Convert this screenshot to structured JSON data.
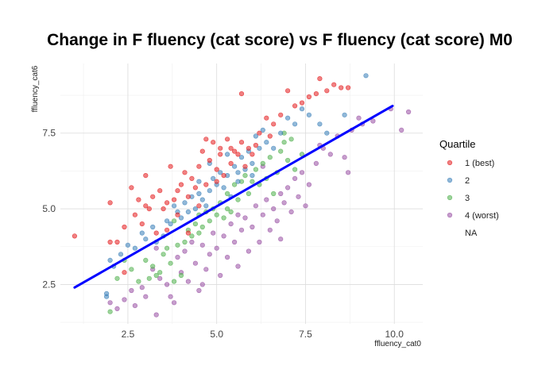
{
  "chart_data": {
    "type": "scatter",
    "title": "Change in F fluency (cat score) vs F fluency (cat score) M0",
    "xlabel": "ffluency_cat0",
    "ylabel": "ffluency_cat6",
    "xlim": [
      0.6,
      10.8
    ],
    "ylim": [
      1.2,
      9.8
    ],
    "x_ticks": [
      2.5,
      5.0,
      7.5,
      10.0
    ],
    "y_ticks": [
      2.5,
      5.0,
      7.5
    ],
    "x_tick_labels": [
      "2.5",
      "5.0",
      "7.5",
      "10.0"
    ],
    "y_tick_labels": [
      "2.5",
      "5.0",
      "7.5"
    ],
    "grid": true,
    "legend": {
      "title": "Quartile",
      "placement": "right",
      "entries": [
        "1 (best)",
        "2",
        "3",
        "4 (worst)",
        "NA"
      ]
    },
    "colors": {
      "1 (best)": "#e41a1c",
      "2": "#377eb8",
      "3": "#4daf4a",
      "4 (worst)": "#984ea3",
      "NA": "transparent",
      "fit": "#0000ff"
    },
    "fit_line": {
      "x": [
        1.0,
        9.95
      ],
      "y": [
        2.4,
        8.4
      ]
    },
    "series": [
      {
        "name": "1 (best)",
        "points": [
          [
            1.0,
            4.1
          ],
          [
            2.0,
            3.9
          ],
          [
            2.0,
            5.2
          ],
          [
            2.2,
            3.9
          ],
          [
            2.4,
            4.4
          ],
          [
            2.4,
            2.9
          ],
          [
            2.6,
            5.7
          ],
          [
            2.7,
            4.8
          ],
          [
            2.8,
            5.3
          ],
          [
            2.9,
            4.5
          ],
          [
            3.0,
            6.1
          ],
          [
            3.0,
            5.1
          ],
          [
            3.1,
            5.0
          ],
          [
            3.2,
            5.4
          ],
          [
            3.3,
            4.2
          ],
          [
            3.4,
            5.6
          ],
          [
            3.5,
            5.0
          ],
          [
            3.6,
            4.3
          ],
          [
            3.7,
            6.4
          ],
          [
            3.8,
            5.3
          ],
          [
            3.9,
            5.6
          ],
          [
            3.9,
            4.8
          ],
          [
            4.0,
            5.8
          ],
          [
            4.1,
            6.2
          ],
          [
            4.2,
            5.4
          ],
          [
            4.2,
            4.2
          ],
          [
            4.3,
            6.0
          ],
          [
            4.4,
            5.7
          ],
          [
            4.5,
            5.1
          ],
          [
            4.5,
            6.4
          ],
          [
            4.6,
            6.9
          ],
          [
            4.7,
            5.8
          ],
          [
            4.8,
            6.6
          ],
          [
            4.9,
            7.2
          ],
          [
            5.0,
            6.3
          ],
          [
            5.0,
            5.9
          ],
          [
            5.1,
            6.8
          ],
          [
            5.1,
            7.0
          ],
          [
            5.2,
            6.1
          ],
          [
            5.3,
            7.3
          ],
          [
            5.4,
            6.5
          ],
          [
            5.5,
            6.9
          ],
          [
            5.6,
            6.8
          ],
          [
            5.7,
            7.2
          ],
          [
            5.8,
            6.4
          ],
          [
            5.9,
            7.0
          ],
          [
            6.0,
            6.8
          ],
          [
            6.2,
            7.5
          ],
          [
            6.4,
            8.0
          ],
          [
            6.5,
            7.4
          ],
          [
            6.6,
            7.8
          ],
          [
            6.8,
            8.1
          ],
          [
            7.0,
            8.9
          ],
          [
            7.2,
            8.4
          ],
          [
            7.4,
            8.5
          ],
          [
            7.6,
            8.7
          ],
          [
            7.8,
            8.8
          ],
          [
            7.9,
            9.3
          ],
          [
            8.1,
            8.9
          ],
          [
            8.3,
            9.1
          ],
          [
            8.5,
            9.0
          ],
          [
            8.7,
            9.0
          ],
          [
            5.7,
            8.8
          ],
          [
            4.7,
            7.3
          ],
          [
            5.4,
            7.0
          ],
          [
            3.6,
            5.2
          ],
          [
            6.1,
            7.1
          ]
        ]
      },
      {
        "name": "2",
        "points": [
          [
            1.9,
            2.1
          ],
          [
            1.9,
            2.2
          ],
          [
            2.0,
            3.3
          ],
          [
            2.1,
            3.1
          ],
          [
            2.3,
            3.5
          ],
          [
            2.5,
            3.8
          ],
          [
            2.7,
            3.7
          ],
          [
            2.9,
            4.2
          ],
          [
            3.0,
            4.0
          ],
          [
            3.2,
            4.4
          ],
          [
            3.3,
            3.9
          ],
          [
            3.5,
            4.1
          ],
          [
            3.6,
            4.6
          ],
          [
            3.7,
            4.5
          ],
          [
            3.8,
            5.1
          ],
          [
            3.9,
            4.9
          ],
          [
            4.0,
            4.7
          ],
          [
            4.1,
            5.2
          ],
          [
            4.2,
            4.9
          ],
          [
            4.3,
            5.4
          ],
          [
            4.4,
            5.0
          ],
          [
            4.5,
            5.5
          ],
          [
            4.6,
            5.3
          ],
          [
            4.7,
            5.1
          ],
          [
            4.8,
            5.6
          ],
          [
            4.9,
            6.0
          ],
          [
            5.0,
            5.8
          ],
          [
            5.1,
            6.2
          ],
          [
            5.2,
            5.7
          ],
          [
            5.3,
            6.1
          ],
          [
            5.4,
            5.4
          ],
          [
            5.5,
            6.4
          ],
          [
            5.6,
            6.2
          ],
          [
            5.7,
            6.7
          ],
          [
            5.8,
            6.3
          ],
          [
            5.9,
            6.9
          ],
          [
            6.0,
            6.5
          ],
          [
            6.1,
            7.4
          ],
          [
            6.2,
            7.0
          ],
          [
            6.3,
            7.6
          ],
          [
            6.4,
            7.2
          ],
          [
            6.6,
            7.0
          ],
          [
            6.8,
            7.5
          ],
          [
            7.0,
            8.0
          ],
          [
            7.2,
            7.8
          ],
          [
            7.4,
            8.3
          ],
          [
            7.6,
            8.1
          ],
          [
            7.9,
            7.8
          ],
          [
            8.1,
            7.5
          ],
          [
            8.6,
            8.1
          ],
          [
            9.2,
            9.4
          ],
          [
            4.8,
            6.5
          ],
          [
            5.3,
            6.8
          ],
          [
            6.0,
            6.1
          ],
          [
            4.5,
            5.9
          ],
          [
            5.6,
            5.9
          ]
        ]
      },
      {
        "name": "3",
        "points": [
          [
            2.0,
            1.6
          ],
          [
            2.2,
            2.7
          ],
          [
            2.4,
            3.3
          ],
          [
            2.6,
            3.0
          ],
          [
            2.8,
            2.6
          ],
          [
            3.0,
            3.3
          ],
          [
            3.1,
            2.7
          ],
          [
            3.2,
            3.1
          ],
          [
            3.3,
            2.8
          ],
          [
            3.5,
            3.5
          ],
          [
            3.6,
            3.7
          ],
          [
            3.7,
            3.2
          ],
          [
            3.8,
            2.6
          ],
          [
            3.9,
            3.8
          ],
          [
            4.0,
            2.8
          ],
          [
            4.1,
            3.9
          ],
          [
            4.2,
            4.3
          ],
          [
            4.3,
            4.1
          ],
          [
            4.4,
            4.5
          ],
          [
            4.5,
            4.8
          ],
          [
            4.6,
            4.4
          ],
          [
            4.7,
            4.9
          ],
          [
            4.8,
            4.6
          ],
          [
            4.9,
            5.0
          ],
          [
            5.0,
            4.8
          ],
          [
            5.1,
            5.2
          ],
          [
            5.2,
            4.7
          ],
          [
            5.3,
            5.5
          ],
          [
            5.4,
            4.9
          ],
          [
            5.5,
            5.8
          ],
          [
            5.6,
            5.3
          ],
          [
            5.7,
            5.9
          ],
          [
            5.8,
            6.1
          ],
          [
            5.9,
            5.5
          ],
          [
            6.0,
            5.9
          ],
          [
            6.1,
            6.3
          ],
          [
            6.2,
            5.8
          ],
          [
            6.3,
            6.5
          ],
          [
            6.4,
            6.0
          ],
          [
            6.5,
            6.7
          ],
          [
            6.6,
            5.5
          ],
          [
            6.7,
            6.2
          ],
          [
            6.8,
            6.9
          ],
          [
            6.9,
            7.2
          ],
          [
            7.0,
            6.6
          ],
          [
            7.1,
            7.3
          ],
          [
            7.2,
            6.3
          ],
          [
            7.4,
            6.8
          ],
          [
            3.4,
            2.9
          ],
          [
            3.8,
            4.6
          ],
          [
            5.3,
            5.0
          ],
          [
            6.9,
            7.5
          ],
          [
            4.5,
            4.2
          ]
        ]
      },
      {
        "name": "4 (worst)",
        "points": [
          [
            2.0,
            1.9
          ],
          [
            2.2,
            1.7
          ],
          [
            2.4,
            2.0
          ],
          [
            2.6,
            2.3
          ],
          [
            2.7,
            1.8
          ],
          [
            2.9,
            2.4
          ],
          [
            3.0,
            2.1
          ],
          [
            3.2,
            3.0
          ],
          [
            3.3,
            1.5
          ],
          [
            3.4,
            2.7
          ],
          [
            3.6,
            2.5
          ],
          [
            3.7,
            2.1
          ],
          [
            3.8,
            1.9
          ],
          [
            3.9,
            3.4
          ],
          [
            4.0,
            2.9
          ],
          [
            4.1,
            3.6
          ],
          [
            4.2,
            2.6
          ],
          [
            4.3,
            3.9
          ],
          [
            4.4,
            3.2
          ],
          [
            4.5,
            2.3
          ],
          [
            4.6,
            3.8
          ],
          [
            4.7,
            3.0
          ],
          [
            4.8,
            3.5
          ],
          [
            4.9,
            4.2
          ],
          [
            5.0,
            3.7
          ],
          [
            5.1,
            2.8
          ],
          [
            5.2,
            4.1
          ],
          [
            5.3,
            3.4
          ],
          [
            5.4,
            4.5
          ],
          [
            5.5,
            3.9
          ],
          [
            5.6,
            3.1
          ],
          [
            5.7,
            4.3
          ],
          [
            5.8,
            4.7
          ],
          [
            5.9,
            3.6
          ],
          [
            6.0,
            4.4
          ],
          [
            6.1,
            5.1
          ],
          [
            6.2,
            3.9
          ],
          [
            6.3,
            4.8
          ],
          [
            6.4,
            5.3
          ],
          [
            6.5,
            4.3
          ],
          [
            6.6,
            5.0
          ],
          [
            6.7,
            4.6
          ],
          [
            6.8,
            5.5
          ],
          [
            6.9,
            5.2
          ],
          [
            7.0,
            5.7
          ],
          [
            7.1,
            4.9
          ],
          [
            7.2,
            6.0
          ],
          [
            7.3,
            5.4
          ],
          [
            7.4,
            6.2
          ],
          [
            7.6,
            5.8
          ],
          [
            7.8,
            6.5
          ],
          [
            8.0,
            7.0
          ],
          [
            8.2,
            6.8
          ],
          [
            8.4,
            7.4
          ],
          [
            8.6,
            6.7
          ],
          [
            8.8,
            7.6
          ],
          [
            9.0,
            8.0
          ],
          [
            9.4,
            7.9
          ],
          [
            9.9,
            8.3
          ],
          [
            10.2,
            7.6
          ],
          [
            10.4,
            8.2
          ],
          [
            3.3,
            3.7
          ],
          [
            4.6,
            2.5
          ],
          [
            5.6,
            4.8
          ],
          [
            6.8,
            4.0
          ],
          [
            7.5,
            5.1
          ],
          [
            8.7,
            6.2
          ],
          [
            9.1,
            7.8
          ],
          [
            6.3,
            6.4
          ],
          [
            7.9,
            7.1
          ]
        ]
      }
    ]
  }
}
